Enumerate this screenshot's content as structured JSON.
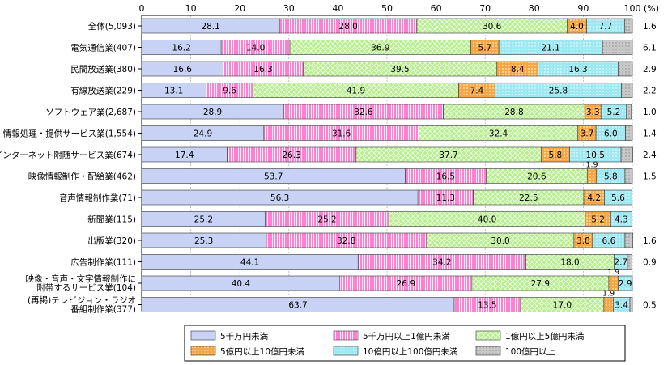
{
  "chart_data": {
    "type": "bar",
    "orientation": "horizontal",
    "stacked": true,
    "xlim": [
      0,
      100
    ],
    "xticks": [
      "0",
      "10",
      "20",
      "30",
      "40",
      "50",
      "60",
      "70",
      "80",
      "90",
      "100"
    ],
    "unit_label": "(%)",
    "categories": [
      "全体(5,093)",
      "電気通信業(407)",
      "民間放送業(380)",
      "有線放送業(229)",
      "ソフトウェア業(2,687)",
      "情報処理・提供サービス業(1,554)",
      "インターネット附随サービス業(674)",
      "映像情報制作・配給業(462)",
      "音声情報制作業(71)",
      "新聞業(115)",
      "出版業(320)",
      "広告制作業(111)",
      [
        "映像・音声・文字情報制作に",
        "附帯するサービス業(104)"
      ],
      [
        "(再掲)テレビジョン・ラジオ",
        "番組制作業(377)"
      ]
    ],
    "series": [
      {
        "name": "5千万円未満",
        "color": "#c7d2f5",
        "values": [
          28.1,
          16.2,
          16.6,
          13.1,
          28.9,
          24.9,
          17.4,
          53.7,
          56.3,
          25.2,
          25.3,
          44.1,
          40.4,
          63.7
        ]
      },
      {
        "name": "5千万円以上1億円未満",
        "color": "#ff7fd4",
        "values": [
          28.0,
          14.0,
          16.3,
          9.6,
          32.6,
          31.6,
          26.3,
          16.5,
          11.3,
          25.2,
          32.8,
          34.2,
          26.9,
          13.5
        ]
      },
      {
        "name": "1億円以上5億円未満",
        "color": "#b6f08c",
        "values": [
          30.6,
          36.9,
          39.5,
          41.9,
          28.8,
          32.4,
          37.7,
          20.6,
          22.5,
          40.0,
          30.0,
          18.0,
          27.9,
          17.0
        ]
      },
      {
        "name": "5億円以上10億円未満",
        "color": "#f5a646",
        "values": [
          4.0,
          5.7,
          8.4,
          7.4,
          3.3,
          3.7,
          5.8,
          1.9,
          4.2,
          5.2,
          3.8,
          0.0,
          1.9,
          1.9
        ]
      },
      {
        "name": "10億円以上100億円未満",
        "color": "#9ee8f2",
        "values": [
          7.7,
          21.1,
          16.3,
          25.8,
          5.2,
          6.0,
          10.5,
          5.8,
          5.6,
          4.3,
          6.6,
          2.7,
          2.9,
          3.4
        ]
      },
      {
        "name": "100億円以上",
        "color": "#c8c8c8",
        "values": [
          1.6,
          6.1,
          2.9,
          2.2,
          1.0,
          1.4,
          2.4,
          1.5,
          0.0,
          0.0,
          1.6,
          0.9,
          0.0,
          0.5
        ]
      }
    ],
    "bar_labels": [
      [
        "28.1",
        "28.0",
        "30.6",
        "4.0",
        "7.7",
        "1.6"
      ],
      [
        "16.2",
        "14.0",
        "36.9",
        "5.7",
        "21.1",
        "6.1"
      ],
      [
        "16.6",
        "16.3",
        "39.5",
        "8.4",
        "16.3",
        "2.9"
      ],
      [
        "13.1",
        "9.6",
        "41.9",
        "7.4",
        "25.8",
        "2.2"
      ],
      [
        "28.9",
        "32.6",
        "28.8",
        "3.3",
        "5.2",
        "1.0"
      ],
      [
        "24.9",
        "31.6",
        "32.4",
        "3.7",
        "6.0",
        "1.4"
      ],
      [
        "17.4",
        "26.3",
        "37.7",
        "5.8",
        "10.5",
        "2.4"
      ],
      [
        "53.7",
        "16.5",
        "20.6",
        "1.9",
        "5.8",
        "1.5"
      ],
      [
        "56.3",
        "11.3",
        "22.5",
        "4.2",
        "5.6",
        ""
      ],
      [
        "25.2",
        "25.2",
        "40.0",
        "5.2",
        "4.3",
        ""
      ],
      [
        "25.3",
        "32.8",
        "30.0",
        "3.8",
        "6.6",
        "1.6"
      ],
      [
        "44.1",
        "34.2",
        "18.0",
        "",
        "2.7",
        "0.9"
      ],
      [
        "40.4",
        "26.9",
        "27.9",
        "1.9",
        "2.9",
        ""
      ],
      [
        "63.7",
        "13.5",
        "17.0",
        "1.9",
        "3.4",
        "0.5"
      ]
    ],
    "legend_position": "bottom-center"
  }
}
